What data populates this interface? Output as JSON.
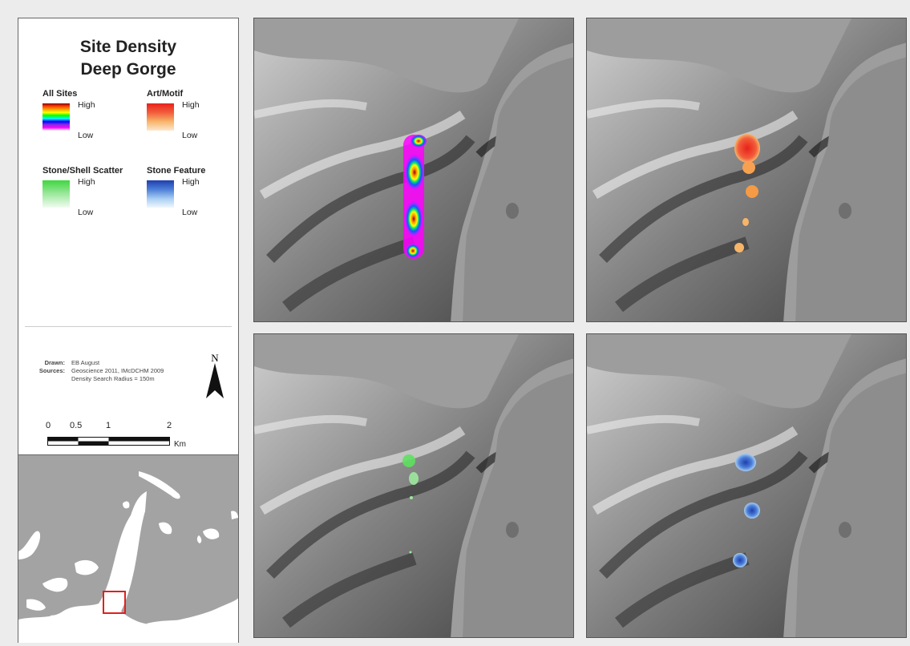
{
  "title": {
    "line1": "Site Density",
    "line2": "Deep Gorge"
  },
  "legend": {
    "all_sites": {
      "name": "All Sites",
      "high": "High",
      "low": "Low"
    },
    "art_motif": {
      "name": "Art/Motif",
      "high": "High",
      "low": "Low"
    },
    "stone_shell": {
      "name": "Stone/Shell Scatter",
      "high": "High",
      "low": "Low"
    },
    "stone_feature": {
      "name": "Stone Feature",
      "high": "High",
      "low": "Low"
    }
  },
  "credits": {
    "drawn_label": "Drawn:",
    "drawn_value": "EB August",
    "sources_label": "Sources:",
    "sources_value": "Geoscience 2011, IMcDCHM 2009",
    "radius": "Density Search Radius = 150m"
  },
  "north_arrow": {
    "label": "N"
  },
  "scale_bar": {
    "ticks": [
      "0",
      "0.5",
      "1",
      "2"
    ],
    "unit": "Km"
  },
  "colors": {
    "land_hillshade": "#9a9a9a",
    "sea": "#8d8d8d",
    "inset_box": "#e02020",
    "art_high": "#e8211b",
    "art_low": "#f7b56a",
    "shell_high": "#3fd63f",
    "feature_high": "#1f3fae",
    "feature_low": "#6fa8e8"
  },
  "icons": {
    "north": "north-arrow-icon",
    "inset_marker": "locator-box-icon"
  }
}
